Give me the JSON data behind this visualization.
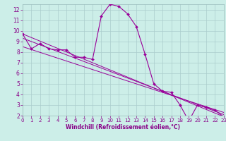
{
  "xlabel": "Windchill (Refroidissement éolien,°C)",
  "bg_color": "#cceee8",
  "grid_color": "#aacccc",
  "line_color": "#990099",
  "xlim": [
    0,
    23
  ],
  "ylim": [
    2,
    12.5
  ],
  "xticks": [
    0,
    1,
    2,
    3,
    4,
    5,
    6,
    7,
    8,
    9,
    10,
    11,
    12,
    13,
    14,
    15,
    16,
    17,
    18,
    19,
    20,
    21,
    22,
    23
  ],
  "yticks": [
    2,
    3,
    4,
    5,
    6,
    7,
    8,
    9,
    10,
    11,
    12
  ],
  "series1_x": [
    0,
    1,
    2,
    3,
    4,
    5,
    6,
    7,
    8,
    9,
    10,
    11,
    12,
    13,
    14,
    15,
    16,
    17,
    18,
    19,
    20,
    21,
    22,
    23
  ],
  "series1_y": [
    9.7,
    8.3,
    8.8,
    8.3,
    8.2,
    8.2,
    7.5,
    7.5,
    7.3,
    11.4,
    12.5,
    12.3,
    11.6,
    10.4,
    7.8,
    5.0,
    4.3,
    4.2,
    3.0,
    1.5,
    3.0,
    2.8,
    2.5,
    1.9
  ],
  "line2_x": [
    0,
    23
  ],
  "line2_y": [
    9.7,
    1.9
  ],
  "line3_x": [
    0,
    23
  ],
  "line3_y": [
    9.3,
    2.1
  ],
  "line4_x": [
    0,
    23
  ],
  "line4_y": [
    8.5,
    2.3
  ],
  "label_color": "#880088",
  "tick_fontsize": 5,
  "xlabel_fontsize": 5.5
}
